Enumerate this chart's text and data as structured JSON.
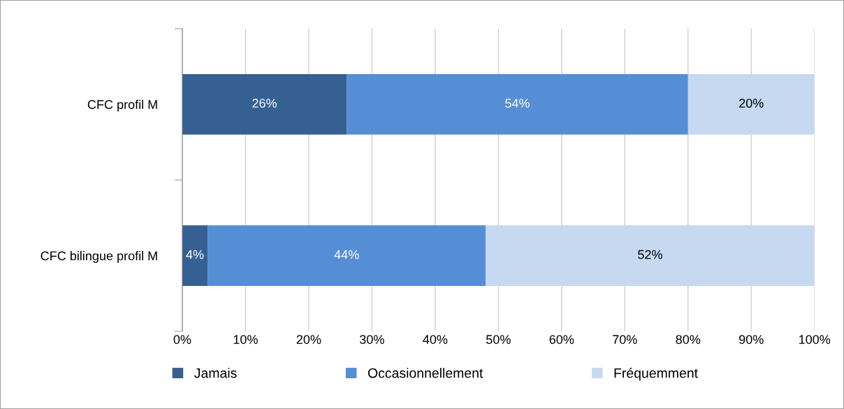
{
  "chart_data": {
    "type": "bar",
    "orientation": "horizontal",
    "stacked": true,
    "categories": [
      "CFC profil M",
      "CFC bilingue profil M"
    ],
    "series": [
      {
        "name": "Jamais",
        "color": "#366092",
        "values": [
          26,
          4
        ],
        "value_labels": [
          "26%",
          "4%"
        ]
      },
      {
        "name": "Occasionnellement",
        "color": "#558ed5",
        "values": [
          54,
          44
        ],
        "value_labels": [
          "54%",
          "44%"
        ]
      },
      {
        "name": "Fréquemment",
        "color": "#c6d9f1",
        "values": [
          20,
          52
        ],
        "value_labels": [
          "20%",
          "52%"
        ]
      }
    ],
    "xlim": [
      0,
      100
    ],
    "xticks": [
      {
        "value": 0,
        "label": "0%"
      },
      {
        "value": 10,
        "label": "10%"
      },
      {
        "value": 20,
        "label": "20%"
      },
      {
        "value": 30,
        "label": "30%"
      },
      {
        "value": 40,
        "label": "40%"
      },
      {
        "value": 50,
        "label": "50%"
      },
      {
        "value": 60,
        "label": "60%"
      },
      {
        "value": 70,
        "label": "70%"
      },
      {
        "value": 80,
        "label": "80%"
      },
      {
        "value": 90,
        "label": "90%"
      },
      {
        "value": 100,
        "label": "100%"
      }
    ],
    "grid": "x",
    "legend": "bottom"
  }
}
